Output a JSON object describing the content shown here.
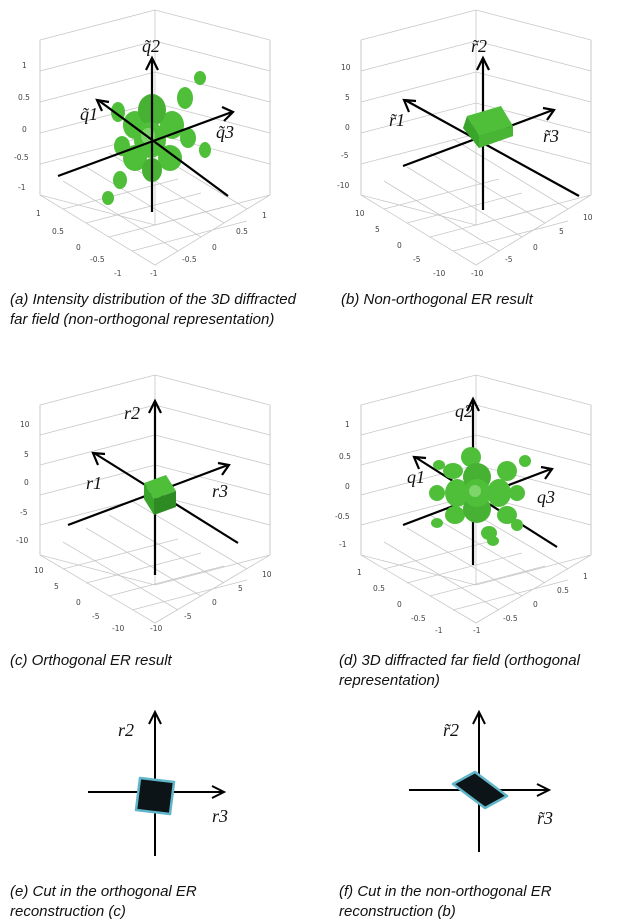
{
  "panels": {
    "a": {
      "caption": "(a) Intensity distribution of the 3D diffracted far field (non-orthogonal representation)",
      "axes": {
        "x": "q̃1",
        "y": "q̃2",
        "z": "q̃3"
      },
      "zticks": [
        "1",
        "0.5",
        "0",
        "-0.5",
        "-1"
      ],
      "xticks_left": [
        "1",
        "0.5",
        "0",
        "-0.5",
        "-1"
      ],
      "xticks_right": [
        "-1",
        "-0.5",
        "0",
        "0.5",
        "1"
      ]
    },
    "b": {
      "caption": "(b) Non-orthogonal ER result",
      "axes": {
        "x": "r̃1",
        "y": "r̃2",
        "z": "r̃3"
      },
      "zticks": [
        "10",
        "5",
        "0",
        "-5",
        "-10"
      ],
      "xticks_left": [
        "10",
        "5",
        "0",
        "-5",
        "-10"
      ],
      "xticks_right": [
        "-10",
        "-5",
        "0",
        "5",
        "10"
      ]
    },
    "c": {
      "caption": "(c) Orthogonal ER result",
      "axes": {
        "x": "r1",
        "y": "r2",
        "z": "r3"
      },
      "zticks": [
        "10",
        "5",
        "0",
        "-5",
        "-10"
      ],
      "xticks_left": [
        "10",
        "5",
        "0",
        "-5",
        "-10"
      ],
      "xticks_right": [
        "-10",
        "-5",
        "0",
        "5",
        "10"
      ]
    },
    "d": {
      "caption": "(d) 3D diffracted far field (orthogonal representation)",
      "axes": {
        "x": "q1",
        "y": "q2",
        "z": "q3"
      },
      "zticks": [
        "1",
        "0.5",
        "0",
        "-0.5",
        "-1"
      ],
      "xticks_left": [
        "1",
        "0.5",
        "0",
        "-0.5",
        "-1"
      ],
      "xticks_right": [
        "-1",
        "-0.5",
        "0",
        "0.5",
        "1"
      ]
    },
    "e": {
      "caption": "(e) Cut in the orthogonal ER reconstruction (c)",
      "axes": {
        "y": "r2",
        "x": "r3"
      }
    },
    "f": {
      "caption": "(f) Cut in the non-orthogonal ER reconstruction (b)",
      "axes": {
        "y": "r̃2",
        "x": "r̃3"
      }
    }
  },
  "colors": {
    "object_green": "#4fbf3a",
    "object_dark": "#2e8a22",
    "grid": "#c8c8c8",
    "axis": "#000000",
    "cut_fill": "#0c1418",
    "cut_edge": "#5fb6c8"
  }
}
